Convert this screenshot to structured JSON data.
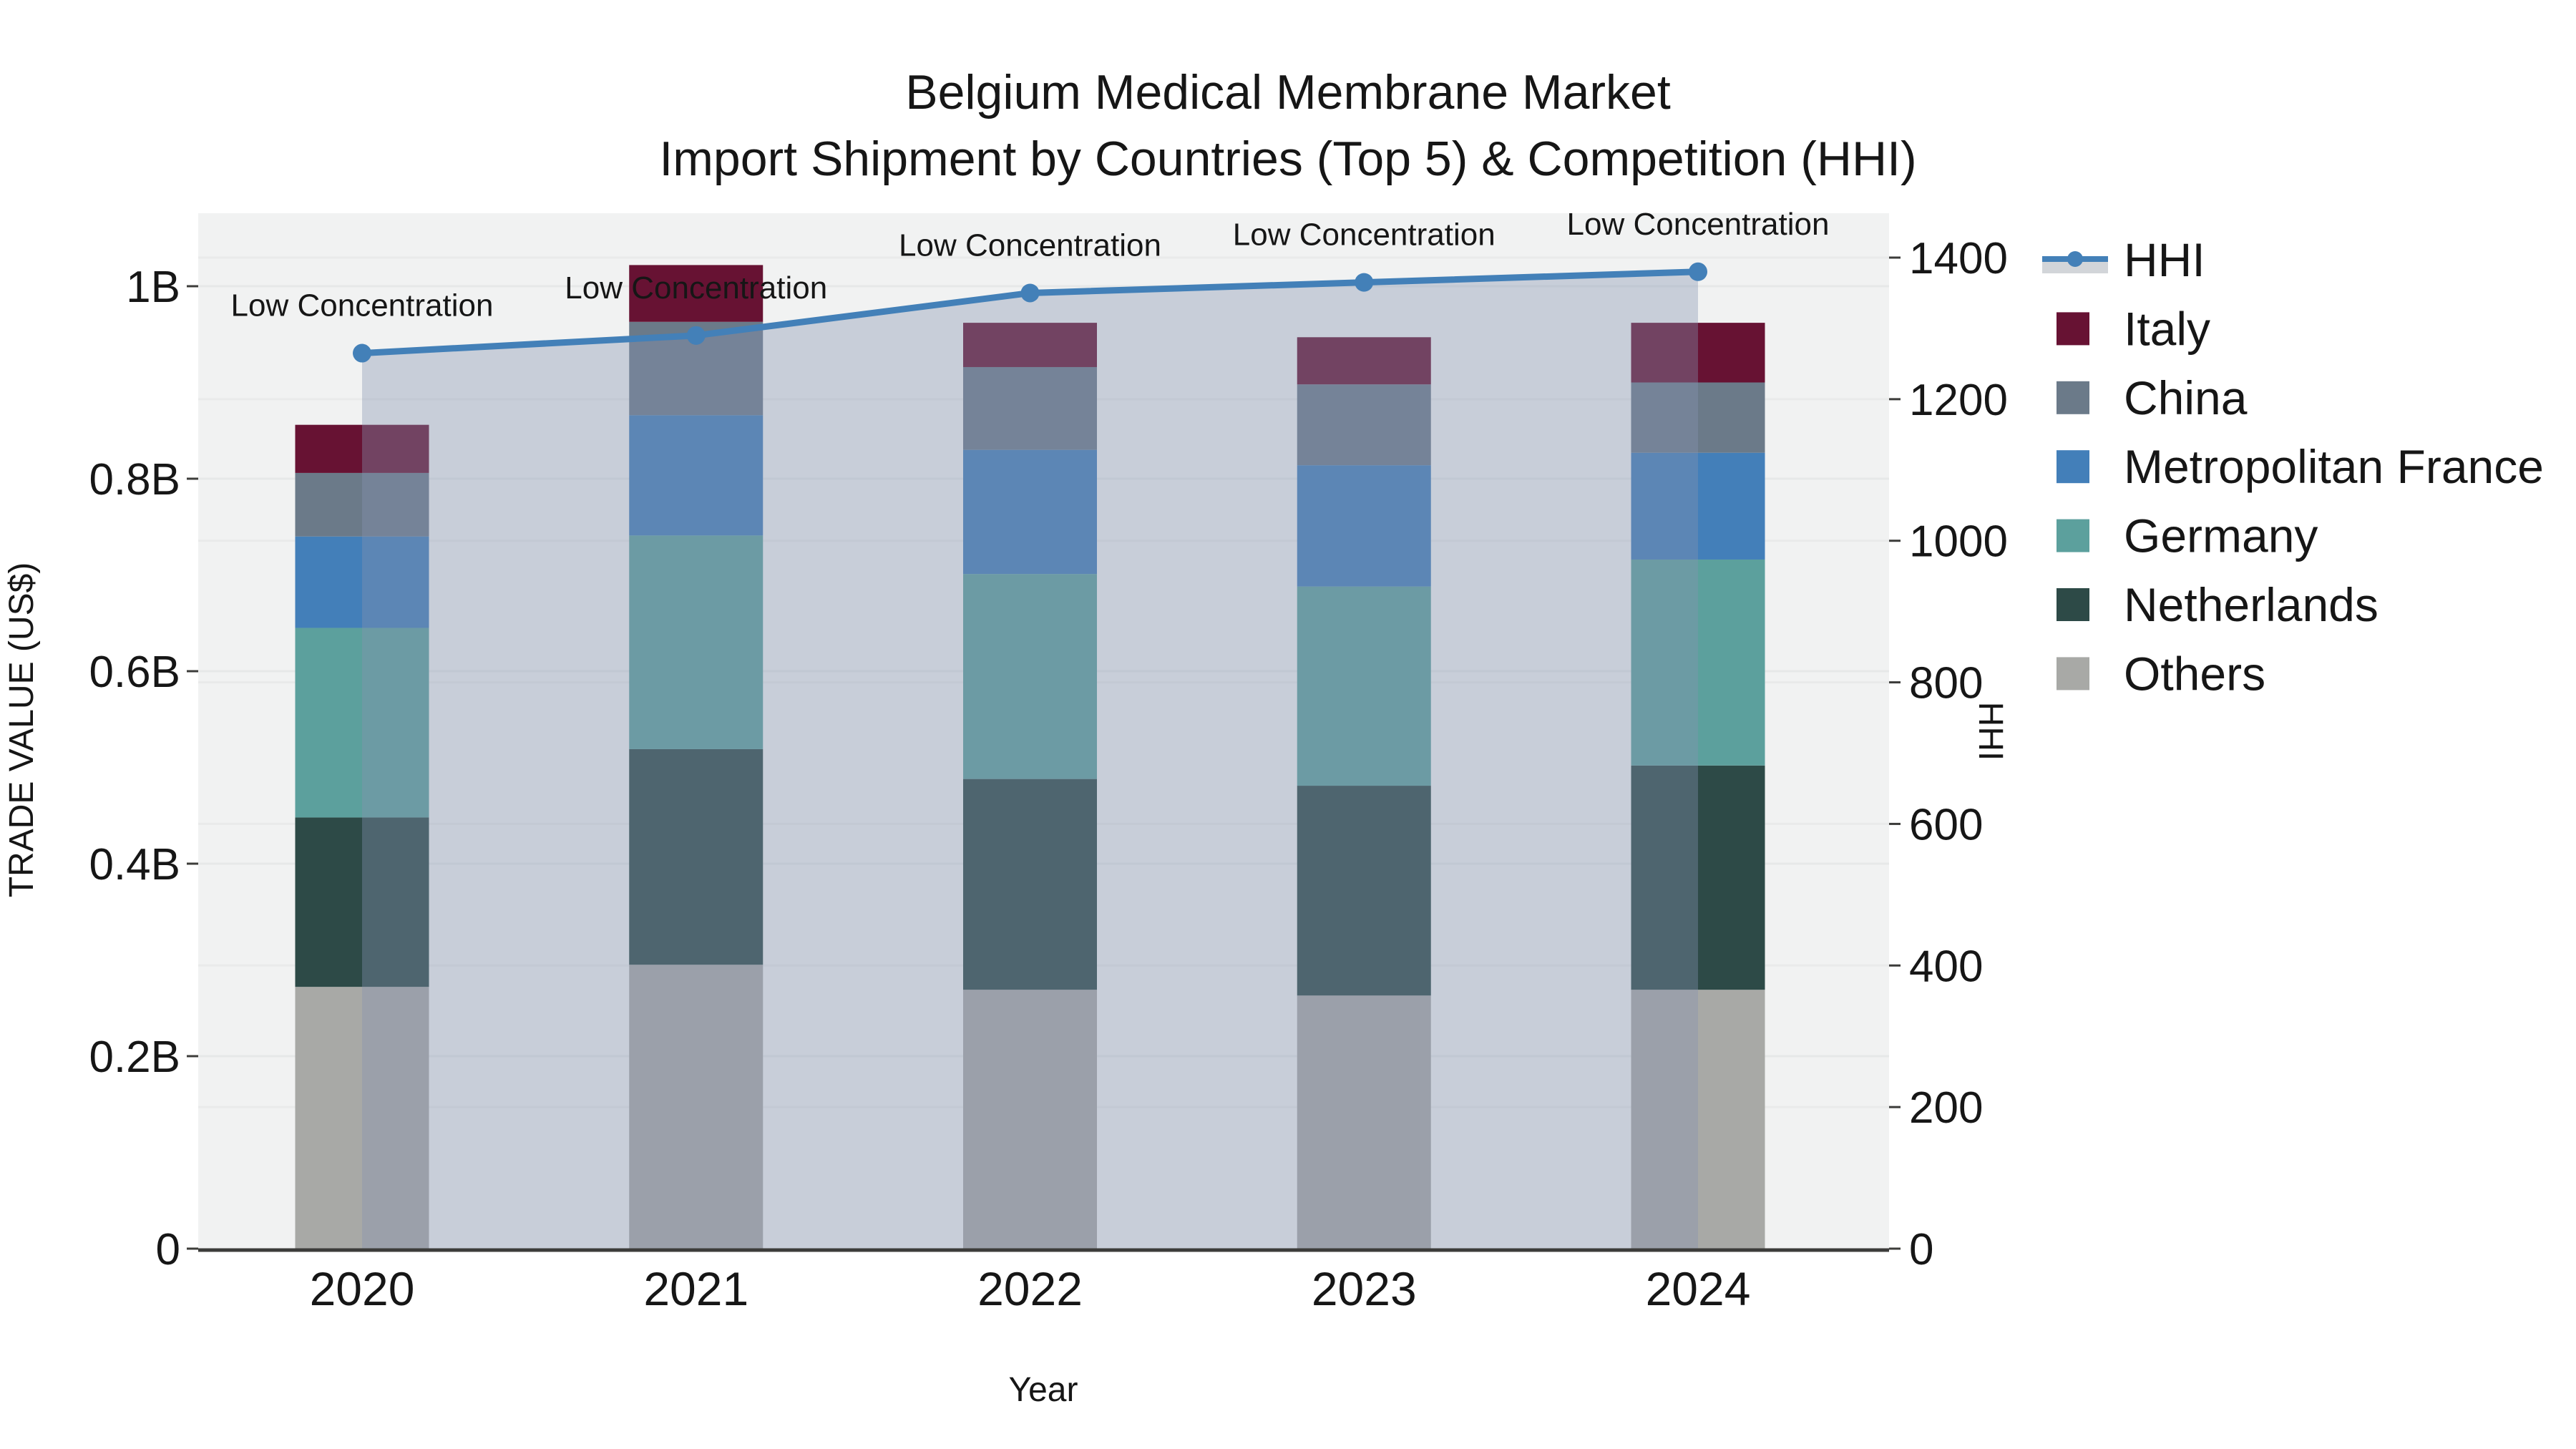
{
  "title": {
    "line1": "Belgium Medical Membrane Market",
    "line2": "Import Shipment by Countries (Top 5) & Competition (HHI)"
  },
  "legend": {
    "items": [
      {
        "label": "HHI",
        "swatch": "line",
        "color": "#4380b8"
      },
      {
        "label": "Italy",
        "swatch": "square",
        "color": "#671233"
      },
      {
        "label": "China",
        "swatch": "square",
        "color": "#6b7a89"
      },
      {
        "label": "Metropolitan France",
        "swatch": "square",
        "color": "#437fb9"
      },
      {
        "label": "Germany",
        "swatch": "square",
        "color": "#5ca09d"
      },
      {
        "label": "Netherlands",
        "swatch": "square",
        "color": "#2d4a47"
      },
      {
        "label": "Others",
        "swatch": "square",
        "color": "#a8a9a6"
      }
    ]
  },
  "chart_data": {
    "type": [
      "bar",
      "line"
    ],
    "x_title": "Year",
    "categories": [
      "2020",
      "2021",
      "2022",
      "2023",
      "2024"
    ],
    "value_unit": "billions of US$",
    "series": [
      {
        "name": "Others",
        "color": "#a8a9a6",
        "values": [
          0.272,
          0.295,
          0.269,
          0.263,
          0.269
        ]
      },
      {
        "name": "Netherlands",
        "color": "#2d4a47",
        "values": [
          0.176,
          0.224,
          0.219,
          0.218,
          0.233
        ]
      },
      {
        "name": "Germany",
        "color": "#5ca09d",
        "values": [
          0.197,
          0.222,
          0.213,
          0.207,
          0.214
        ]
      },
      {
        "name": "Metropolitan France",
        "color": "#437fb9",
        "values": [
          0.095,
          0.125,
          0.129,
          0.126,
          0.111
        ]
      },
      {
        "name": "China",
        "color": "#6b7a89",
        "values": [
          0.066,
          0.097,
          0.086,
          0.084,
          0.073
        ]
      },
      {
        "name": "Italy",
        "color": "#671233",
        "values": [
          0.05,
          0.059,
          0.046,
          0.049,
          0.062
        ]
      }
    ],
    "line_series": {
      "name": "HHI",
      "axis": "right",
      "color": "#4380b8",
      "area_fill": "rgba(134,147,177,0.38)",
      "values": [
        1265,
        1290,
        1350,
        1365,
        1380
      ]
    },
    "annotations": [
      "Low Concentration",
      "Low Concentration",
      "Low Concentration",
      "Low Concentration",
      "Low Concentration"
    ],
    "y_left": {
      "title": "TRADE VALUE (US$)",
      "tick_labels": [
        "0",
        "0.2B",
        "0.4B",
        "0.6B",
        "0.8B",
        "1B"
      ],
      "tick_values": [
        0,
        0.2,
        0.4,
        0.6,
        0.8,
        1.0
      ],
      "range": [
        0,
        1.076
      ]
    },
    "y_right": {
      "title": "HHI",
      "tick_labels": [
        "0",
        "200",
        "400",
        "600",
        "800",
        "1000",
        "1200",
        "1400"
      ],
      "tick_values": [
        0,
        200,
        400,
        600,
        800,
        1000,
        1200,
        1400
      ],
      "range": [
        0,
        1463
      ]
    },
    "legend_position": "right",
    "grid": true
  }
}
